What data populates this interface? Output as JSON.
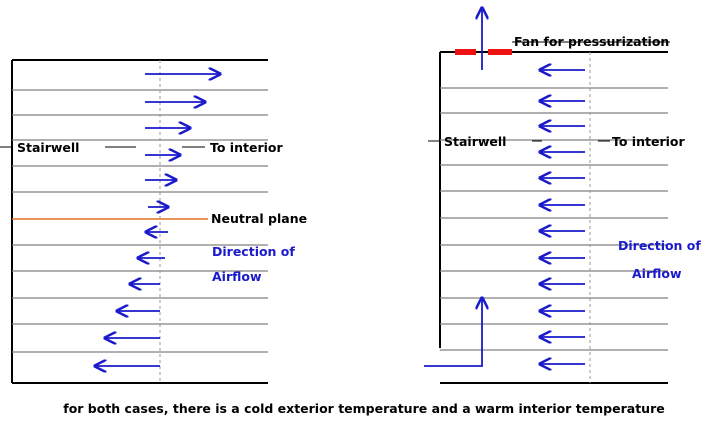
{
  "left_diagram": {
    "stairwell_label": "Stairwell",
    "interior_label": "To interior",
    "neutral_plane_label": "Neutral plane",
    "airflow_label_line1": "Direction of",
    "airflow_label_line2": "Airflow"
  },
  "right_diagram": {
    "fan_label": "Fan for pressurization",
    "stairwell_label": "Stairwell",
    "interior_label": "To interior",
    "airflow_label_line1": "Direction of",
    "airflow_label_line2": "Airflow"
  },
  "caption": "for both cases, there is a cold exterior temperature and a warm interior temperature",
  "colors": {
    "floor_line": "#808080",
    "neutral_plane": "#e07020",
    "arrow": "#1a1acc",
    "fan": "#ee1111",
    "outline": "#000000",
    "center_dash": "#999999"
  }
}
